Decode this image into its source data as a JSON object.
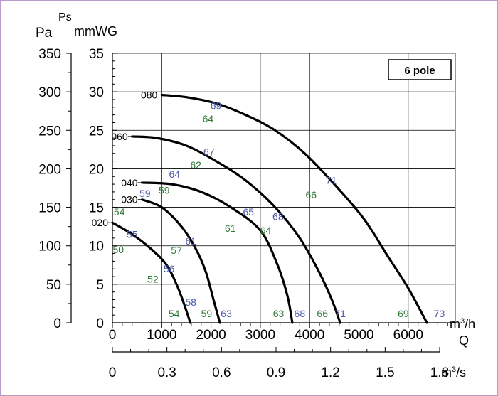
{
  "chart_data": {
    "type": "line",
    "legend_box": "6 pole",
    "units": {
      "pa": "Pa",
      "ps_sup": "Ps",
      "mmwg": "mmWG",
      "q": "Q",
      "m3h_base": "m",
      "m3h_sup": "3",
      "m3h_tail": "/h",
      "m3s_base": "m",
      "m3s_sup": "3",
      "m3s_tail": "/s"
    },
    "pa_ticks": [
      "0",
      "50",
      "100",
      "150",
      "200",
      "250",
      "300",
      "350"
    ],
    "mmwg_ticks": [
      "0",
      "5",
      "10",
      "15",
      "20",
      "25",
      "30",
      "35"
    ],
    "m3h_ticks": [
      "0",
      "1000",
      "2000",
      "3000",
      "4000",
      "5000",
      "6000"
    ],
    "m3s_ticks": [
      "0",
      "0.3",
      "0.6",
      "0.9",
      "1.2",
      "1.5",
      "1.8"
    ],
    "xlim": [
      0,
      7000
    ],
    "ylim": [
      0,
      35
    ],
    "grid": true,
    "series": [
      {
        "name": "020",
        "values": [
          [
            0,
            13
          ],
          [
            400,
            11.5
          ],
          [
            800,
            9.5
          ],
          [
            1100,
            7.5
          ],
          [
            1300,
            5
          ],
          [
            1450,
            2.5
          ],
          [
            1580,
            0
          ]
        ]
      },
      {
        "name": "030",
        "values": [
          [
            600,
            16
          ],
          [
            1000,
            15
          ],
          [
            1400,
            12.5
          ],
          [
            1700,
            9.5
          ],
          [
            1900,
            6.5
          ],
          [
            2050,
            3
          ],
          [
            2180,
            0
          ]
        ]
      },
      {
        "name": "040",
        "values": [
          [
            600,
            18.2
          ],
          [
            1200,
            18
          ],
          [
            1800,
            17
          ],
          [
            2400,
            15
          ],
          [
            3000,
            12
          ],
          [
            3350,
            7.5
          ],
          [
            3550,
            3.5
          ],
          [
            3650,
            0
          ]
        ]
      },
      {
        "name": "060",
        "values": [
          [
            400,
            24.2
          ],
          [
            900,
            24
          ],
          [
            1500,
            23
          ],
          [
            2100,
            21
          ],
          [
            2700,
            18.5
          ],
          [
            3300,
            15
          ],
          [
            3800,
            11
          ],
          [
            4200,
            6.5
          ],
          [
            4450,
            3
          ],
          [
            4620,
            0
          ]
        ]
      },
      {
        "name": "080",
        "values": [
          [
            1000,
            29.6
          ],
          [
            1500,
            29.3
          ],
          [
            2100,
            28.5
          ],
          [
            2700,
            27
          ],
          [
            3300,
            25
          ],
          [
            3900,
            22
          ],
          [
            4500,
            18
          ],
          [
            5100,
            13.5
          ],
          [
            5600,
            8.5
          ],
          [
            6000,
            4.5
          ],
          [
            6380,
            0
          ]
        ]
      }
    ],
    "annotations": [
      {
        "text": "69",
        "x": 2100,
        "y": 28.2,
        "color": "blue"
      },
      {
        "text": "64",
        "x": 1940,
        "y": 26.5,
        "color": "green"
      },
      {
        "text": "67",
        "x": 1960,
        "y": 22.2,
        "color": "blue"
      },
      {
        "text": "62",
        "x": 1690,
        "y": 20.5,
        "color": "green"
      },
      {
        "text": "64",
        "x": 1260,
        "y": 19.3,
        "color": "blue"
      },
      {
        "text": "59",
        "x": 660,
        "y": 16.8,
        "color": "blue"
      },
      {
        "text": "59",
        "x": 1050,
        "y": 17.2,
        "color": "green"
      },
      {
        "text": "54",
        "x": 140,
        "y": 14.4,
        "color": "green"
      },
      {
        "text": "55",
        "x": 400,
        "y": 11.5,
        "color": "blue"
      },
      {
        "text": "50",
        "x": 120,
        "y": 9.5,
        "color": "green"
      },
      {
        "text": "61",
        "x": 1590,
        "y": 10.6,
        "color": "blue"
      },
      {
        "text": "57",
        "x": 1300,
        "y": 9.4,
        "color": "green"
      },
      {
        "text": "56",
        "x": 1150,
        "y": 7.0,
        "color": "blue"
      },
      {
        "text": "52",
        "x": 820,
        "y": 5.7,
        "color": "green"
      },
      {
        "text": "58",
        "x": 1590,
        "y": 2.7,
        "color": "blue"
      },
      {
        "text": "54",
        "x": 1250,
        "y": 1.2,
        "color": "green"
      },
      {
        "text": "59",
        "x": 1910,
        "y": 1.2,
        "color": "green"
      },
      {
        "text": "63",
        "x": 2310,
        "y": 1.2,
        "color": "blue"
      },
      {
        "text": "65",
        "x": 2760,
        "y": 14.4,
        "color": "blue"
      },
      {
        "text": "68",
        "x": 3360,
        "y": 13.8,
        "color": "blue"
      },
      {
        "text": "61",
        "x": 2390,
        "y": 12.3,
        "color": "green"
      },
      {
        "text": "64",
        "x": 3110,
        "y": 12.0,
        "color": "green"
      },
      {
        "text": "63",
        "x": 3370,
        "y": 1.2,
        "color": "green"
      },
      {
        "text": "68",
        "x": 3800,
        "y": 1.2,
        "color": "blue"
      },
      {
        "text": "66",
        "x": 4260,
        "y": 1.2,
        "color": "green"
      },
      {
        "text": "71",
        "x": 4620,
        "y": 1.2,
        "color": "blue"
      },
      {
        "text": "71",
        "x": 4440,
        "y": 18.5,
        "color": "blue"
      },
      {
        "text": "66",
        "x": 4030,
        "y": 16.6,
        "color": "green"
      },
      {
        "text": "69",
        "x": 5900,
        "y": 1.2,
        "color": "green"
      },
      {
        "text": "73",
        "x": 6630,
        "y": 1.2,
        "color": "blue"
      }
    ],
    "colors": {
      "blue": "#4b5aa8",
      "green": "#2f7b3a",
      "curve": "#000000",
      "frame": "#b79cc9"
    }
  }
}
